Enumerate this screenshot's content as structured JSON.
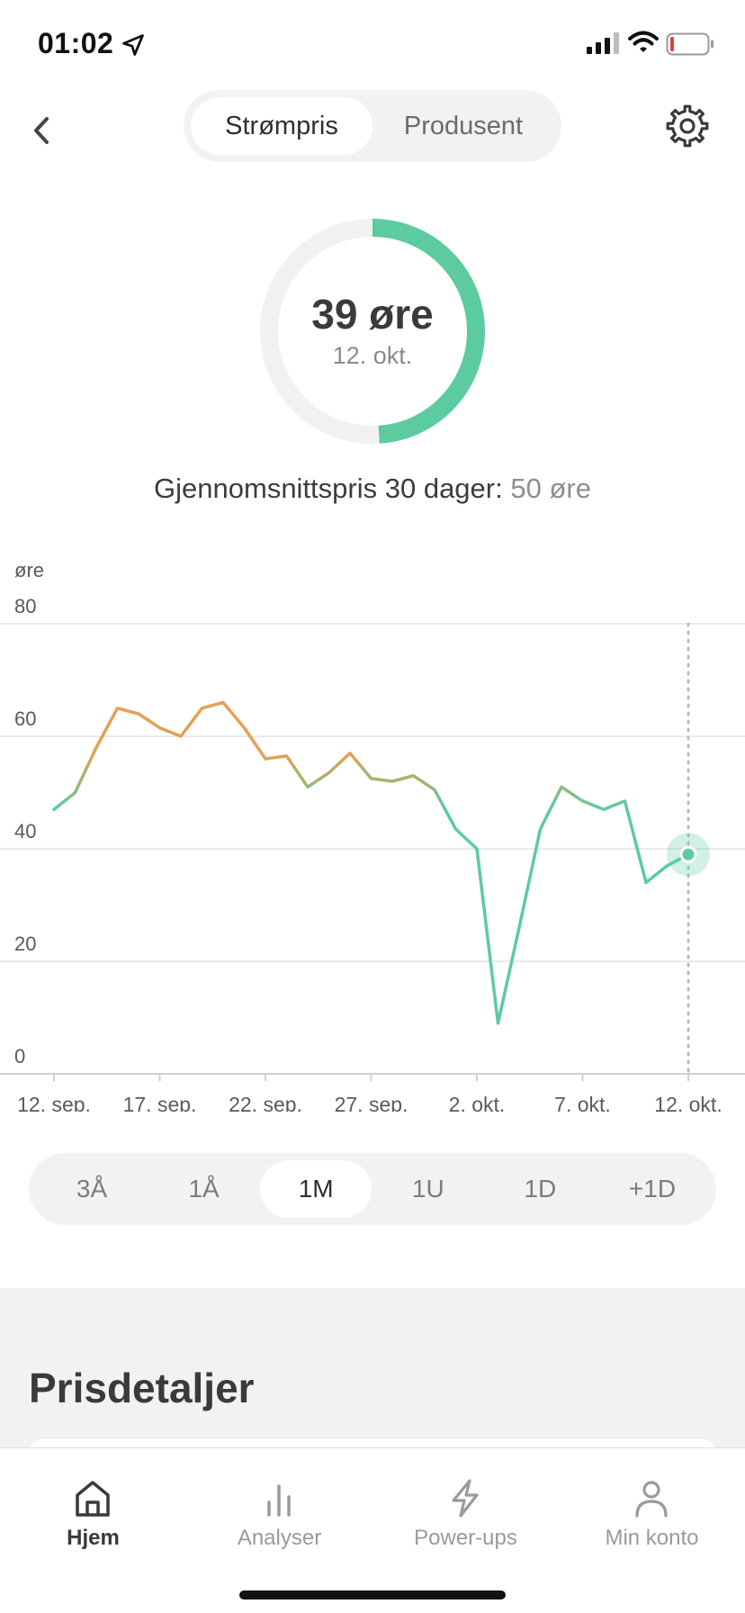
{
  "status": {
    "time": "01:02",
    "icons": [
      "location-arrow-icon",
      "cellular-signal-icon",
      "wifi-icon",
      "battery-low-icon"
    ]
  },
  "header": {
    "back_icon": "chevron-left-icon",
    "tabs": [
      {
        "label": "Strømpris",
        "active": true
      },
      {
        "label": "Produsent",
        "active": false
      }
    ],
    "settings_icon": "gear-icon"
  },
  "gauge": {
    "value_text": "39 øre",
    "date": "12. okt.",
    "fill_fraction": 0.49,
    "track_color": "#f1f1f1",
    "fill_color": "#5ccba0"
  },
  "average": {
    "label": "Gjennomsnittspris 30 dager:",
    "value": "50 øre"
  },
  "chart_data": {
    "type": "line",
    "ylabel": "øre",
    "ylim": [
      0,
      80
    ],
    "y_ticks": [
      "0",
      "20",
      "40",
      "60",
      "80"
    ],
    "x_ticks": [
      "12. sep.",
      "17. sep.",
      "22. sep.",
      "27. sep.",
      "2. okt.",
      "7. okt.",
      "12. okt."
    ],
    "grid": true,
    "highlight": {
      "x_label": "12. okt.",
      "y": 39
    },
    "colors": {
      "high": "#e3a152",
      "low": "#5ccba0"
    },
    "series": [
      {
        "x": [
          "12. sep.",
          "13. sep.",
          "14. sep.",
          "15. sep.",
          "16. sep.",
          "17. sep.",
          "18. sep.",
          "19. sep.",
          "20. sep.",
          "21. sep.",
          "22. sep.",
          "23. sep.",
          "24. sep.",
          "25. sep.",
          "26. sep.",
          "27. sep.",
          "28. sep.",
          "29. sep.",
          "30. sep.",
          "1. okt.",
          "2. okt.",
          "3. okt.",
          "4. okt.",
          "5. okt.",
          "6. okt.",
          "7. okt.",
          "8. okt.",
          "9. okt.",
          "10. okt.",
          "11. okt.",
          "12. okt."
        ],
        "values": [
          47,
          50,
          58,
          65,
          64,
          61.5,
          60,
          65,
          66,
          61.5,
          56,
          56.5,
          51,
          53.5,
          57,
          52.5,
          52,
          53,
          50.5,
          43.5,
          40,
          9,
          26,
          43.5,
          51,
          48.5,
          47,
          48.5,
          34,
          37,
          39
        ]
      }
    ]
  },
  "ranges": [
    {
      "label": "3Å",
      "active": false
    },
    {
      "label": "1Å",
      "active": false
    },
    {
      "label": "1M",
      "active": true
    },
    {
      "label": "1U",
      "active": false
    },
    {
      "label": "1D",
      "active": false
    },
    {
      "label": "+1D",
      "active": false
    }
  ],
  "details": {
    "title": "Prisdetaljer"
  },
  "tabbar": {
    "items": [
      {
        "label": "Hjem",
        "icon": "home-icon",
        "active": true
      },
      {
        "label": "Analyser",
        "icon": "bar-chart-icon",
        "active": false
      },
      {
        "label": "Power-ups",
        "icon": "lightning-icon",
        "active": false
      },
      {
        "label": "Min konto",
        "icon": "user-icon",
        "active": false
      }
    ]
  }
}
